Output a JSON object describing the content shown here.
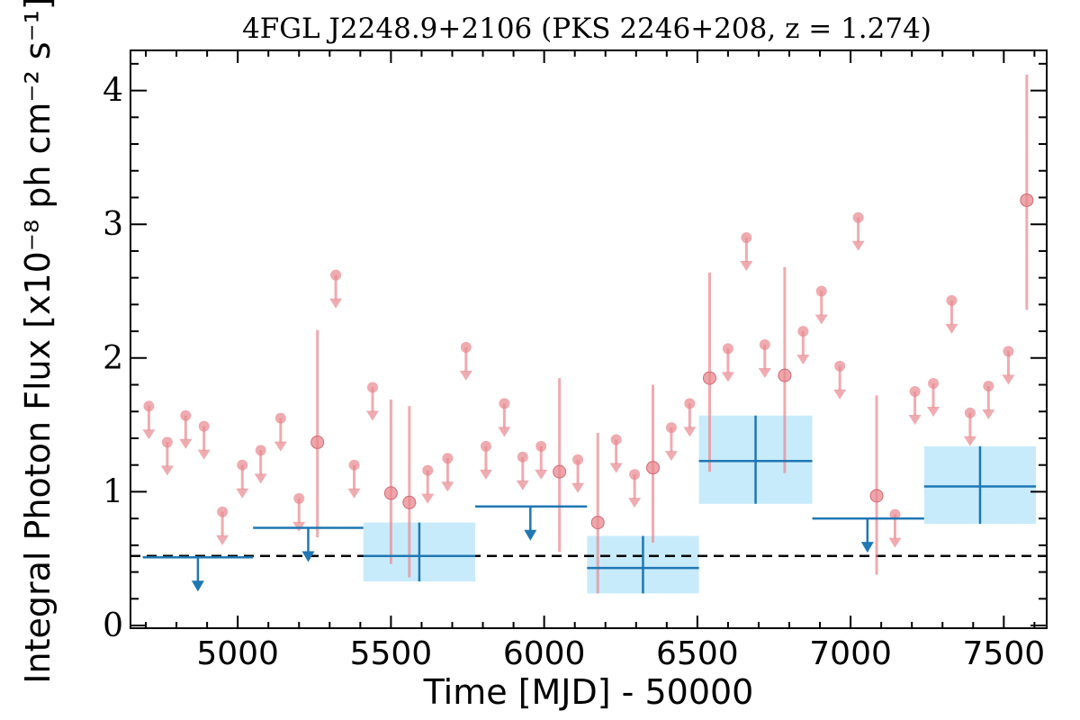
{
  "chart_data": {
    "type": "scatter",
    "title": "4FGL J2248.9+2106 (PKS 2246+208, z = 1.274)",
    "xlabel": "Time [MJD] - 50000",
    "ylabel": "Integral Photon Flux [x10⁻⁸ ph cm⁻² s⁻¹]",
    "xlim": [
      4650,
      7640
    ],
    "ylim": [
      -0.02,
      4.3
    ],
    "xticks": [
      5000,
      5500,
      6000,
      6500,
      7000,
      7500
    ],
    "xtick_labels": [
      "5000",
      "5500",
      "6000",
      "6500",
      "7000",
      "7500"
    ],
    "yticks": [
      0,
      1,
      2,
      3,
      4
    ],
    "ytick_labels": [
      "0",
      "1",
      "2",
      "3",
      "4"
    ],
    "grid": false,
    "colors": {
      "fine": "#e8888f",
      "coarse": "#1f77b4",
      "band": "#c8ebfb",
      "mean": "#000000"
    },
    "mean_flux": 0.52,
    "fine_bins": [
      {
        "x": 4710,
        "y": 1.64,
        "ul": true
      },
      {
        "x": 4770,
        "y": 1.37,
        "ul": true
      },
      {
        "x": 4830,
        "y": 1.57,
        "ul": true
      },
      {
        "x": 4890,
        "y": 1.49,
        "ul": true
      },
      {
        "x": 4950,
        "y": 0.85,
        "ul": true
      },
      {
        "x": 5015,
        "y": 1.2,
        "ul": true
      },
      {
        "x": 5075,
        "y": 1.31,
        "ul": true
      },
      {
        "x": 5140,
        "y": 1.55,
        "ul": true
      },
      {
        "x": 5200,
        "y": 0.95,
        "ul": true
      },
      {
        "x": 5260,
        "y": 1.37,
        "ul": false,
        "lo": 0.66,
        "hi": 2.21
      },
      {
        "x": 5320,
        "y": 2.62,
        "ul": true
      },
      {
        "x": 5380,
        "y": 1.2,
        "ul": true
      },
      {
        "x": 5440,
        "y": 1.78,
        "ul": true
      },
      {
        "x": 5500,
        "y": 0.99,
        "ul": false,
        "lo": 0.46,
        "hi": 1.69
      },
      {
        "x": 5560,
        "y": 0.92,
        "ul": false,
        "lo": 0.36,
        "hi": 1.64
      },
      {
        "x": 5620,
        "y": 1.16,
        "ul": true
      },
      {
        "x": 5685,
        "y": 1.25,
        "ul": true
      },
      {
        "x": 5745,
        "y": 2.08,
        "ul": true
      },
      {
        "x": 5810,
        "y": 1.34,
        "ul": true
      },
      {
        "x": 5870,
        "y": 1.66,
        "ul": true
      },
      {
        "x": 5930,
        "y": 1.26,
        "ul": true
      },
      {
        "x": 5990,
        "y": 1.34,
        "ul": true
      },
      {
        "x": 6050,
        "y": 1.15,
        "ul": false,
        "lo": 0.55,
        "hi": 1.85
      },
      {
        "x": 6110,
        "y": 1.24,
        "ul": true
      },
      {
        "x": 6175,
        "y": 0.77,
        "ul": false,
        "lo": 0.24,
        "hi": 1.44
      },
      {
        "x": 6235,
        "y": 1.39,
        "ul": true
      },
      {
        "x": 6295,
        "y": 1.13,
        "ul": true
      },
      {
        "x": 6355,
        "y": 1.18,
        "ul": false,
        "lo": 0.62,
        "hi": 1.8
      },
      {
        "x": 6415,
        "y": 1.48,
        "ul": true
      },
      {
        "x": 6475,
        "y": 1.66,
        "ul": true
      },
      {
        "x": 6540,
        "y": 1.85,
        "ul": false,
        "lo": 1.15,
        "hi": 2.64
      },
      {
        "x": 6600,
        "y": 2.07,
        "ul": true
      },
      {
        "x": 6660,
        "y": 2.9,
        "ul": true
      },
      {
        "x": 6720,
        "y": 2.1,
        "ul": true
      },
      {
        "x": 6785,
        "y": 1.87,
        "ul": false,
        "lo": 1.14,
        "hi": 2.68
      },
      {
        "x": 6845,
        "y": 2.2,
        "ul": true
      },
      {
        "x": 6905,
        "y": 2.5,
        "ul": true
      },
      {
        "x": 6965,
        "y": 1.94,
        "ul": true
      },
      {
        "x": 7025,
        "y": 3.05,
        "ul": true
      },
      {
        "x": 7085,
        "y": 0.97,
        "ul": false,
        "lo": 0.38,
        "hi": 1.72
      },
      {
        "x": 7145,
        "y": 0.83,
        "ul": true
      },
      {
        "x": 7210,
        "y": 1.75,
        "ul": true
      },
      {
        "x": 7270,
        "y": 1.81,
        "ul": true
      },
      {
        "x": 7330,
        "y": 2.43,
        "ul": true
      },
      {
        "x": 7390,
        "y": 1.59,
        "ul": true
      },
      {
        "x": 7450,
        "y": 1.79,
        "ul": true
      },
      {
        "x": 7515,
        "y": 2.05,
        "ul": true
      },
      {
        "x": 7575,
        "y": 3.18,
        "ul": false,
        "lo": 2.36,
        "hi": 4.12
      }
    ],
    "coarse_bins": [
      {
        "x0": 4690,
        "x1": 5050,
        "y": 0.51,
        "ul": true,
        "xc": 4870
      },
      {
        "x0": 5050,
        "x1": 5410,
        "y": 0.73,
        "ul": true,
        "xc": 5230
      },
      {
        "x0": 5410,
        "x1": 5775,
        "y": 0.52,
        "ul": false,
        "lo": 0.33,
        "hi": 0.77
      },
      {
        "x0": 5775,
        "x1": 6140,
        "y": 0.89,
        "ul": true,
        "xc": 5955
      },
      {
        "x0": 6140,
        "x1": 6505,
        "y": 0.43,
        "ul": false,
        "lo": 0.24,
        "hi": 0.67
      },
      {
        "x0": 6505,
        "x1": 6875,
        "y": 1.23,
        "ul": false,
        "lo": 0.91,
        "hi": 1.57
      },
      {
        "x0": 6875,
        "x1": 7240,
        "y": 0.8,
        "ul": true,
        "xc": 7055
      },
      {
        "x0": 7240,
        "x1": 7605,
        "y": 1.04,
        "ul": false,
        "lo": 0.76,
        "hi": 1.34
      }
    ]
  }
}
